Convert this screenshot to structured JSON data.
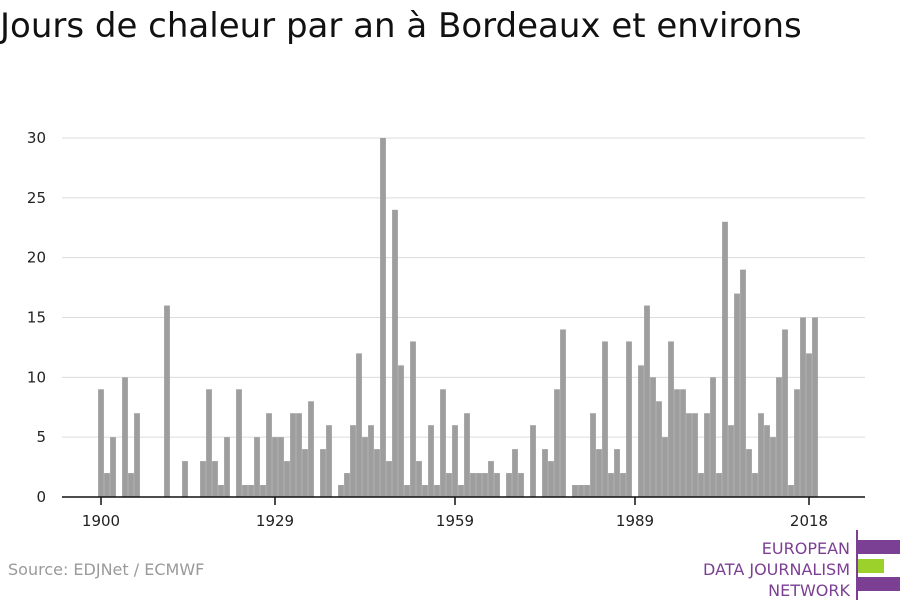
{
  "title": "Jours de chaleur par an à Bordeaux et environs",
  "source": "Source: EDJNet / ECMWF",
  "logo": {
    "line1": "EUROPEAN",
    "line2": "DATA JOURNALISM",
    "line3": "NETWORK",
    "purple": "#7b3f93",
    "green": "#9bd12a"
  },
  "chart_data": {
    "type": "bar",
    "title": "Jours de chaleur par an à Bordeaux et environs",
    "xlabel": "",
    "ylabel": "",
    "bar_color": "#9e9e9e",
    "grid": true,
    "x_start": 1900,
    "xlim": [
      1900,
      2018
    ],
    "ylim": [
      0,
      30
    ],
    "y_ticks": [
      0,
      5,
      10,
      15,
      20,
      25,
      30
    ],
    "x_ticks": [
      1900,
      1929,
      1959,
      1989,
      2018
    ],
    "values": [
      9,
      2,
      5,
      0,
      10,
      2,
      7,
      0,
      0,
      0,
      0,
      16,
      0,
      0,
      3,
      0,
      0,
      3,
      9,
      3,
      1,
      5,
      0,
      9,
      1,
      1,
      5,
      1,
      7,
      5,
      5,
      3,
      7,
      7,
      4,
      8,
      0,
      4,
      6,
      0,
      1,
      2,
      6,
      12,
      5,
      6,
      4,
      30,
      3,
      24,
      11,
      1,
      13,
      3,
      1,
      6,
      1,
      9,
      2,
      6,
      1,
      7,
      2,
      2,
      2,
      3,
      2,
      0,
      2,
      4,
      2,
      0,
      6,
      0,
      4,
      3,
      9,
      14,
      0,
      1,
      1,
      1,
      7,
      4,
      13,
      2,
      4,
      2,
      13,
      0,
      11,
      16,
      10,
      8,
      5,
      13,
      9,
      9,
      7,
      7,
      2,
      7,
      10,
      2,
      23,
      6,
      17,
      19,
      4,
      2,
      7,
      6,
      5,
      10,
      14,
      1,
      9,
      15,
      12,
      15
    ]
  }
}
